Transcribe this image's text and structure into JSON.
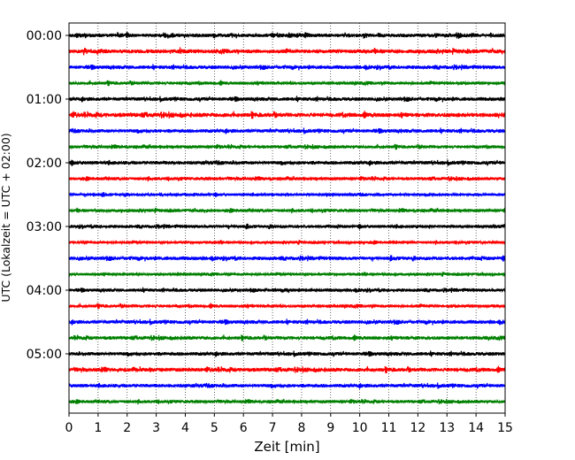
{
  "chart_data": {
    "type": "line",
    "title": "",
    "xlabel": "Zeit  [min]",
    "ylabel": "UTC (Lokalzeit = UTC + 02:00)",
    "xlim": [
      0,
      15
    ],
    "x_ticks": [
      0,
      1,
      2,
      3,
      4,
      5,
      6,
      7,
      8,
      9,
      10,
      11,
      12,
      13,
      14,
      15
    ],
    "y_tick_labels": [
      "00:00",
      "01:00",
      "02:00",
      "03:00",
      "04:00",
      "05:00"
    ],
    "grid": "vertical dotted lines at each minute",
    "trace_interval_min": 15,
    "trace_colors": [
      "#000000",
      "#ff0000",
      "#0000ff",
      "#008000"
    ],
    "series": [
      {
        "start": "00:00",
        "color": "#000000",
        "amplitude": 0.9
      },
      {
        "start": "00:15",
        "color": "#ff0000",
        "amplitude": 1.0
      },
      {
        "start": "00:30",
        "color": "#0000ff",
        "amplitude": 0.9
      },
      {
        "start": "00:45",
        "color": "#008000",
        "amplitude": 0.8
      },
      {
        "start": "01:00",
        "color": "#000000",
        "amplitude": 0.9
      },
      {
        "start": "01:15",
        "color": "#ff0000",
        "amplitude": 1.1
      },
      {
        "start": "01:30",
        "color": "#0000ff",
        "amplitude": 0.9
      },
      {
        "start": "01:45",
        "color": "#008000",
        "amplitude": 0.8
      },
      {
        "start": "02:00",
        "color": "#000000",
        "amplitude": 0.9
      },
      {
        "start": "02:15",
        "color": "#ff0000",
        "amplitude": 0.8
      },
      {
        "start": "02:30",
        "color": "#0000ff",
        "amplitude": 0.7
      },
      {
        "start": "02:45",
        "color": "#008000",
        "amplitude": 0.8
      },
      {
        "start": "03:00",
        "color": "#000000",
        "amplitude": 0.8
      },
      {
        "start": "03:15",
        "color": "#ff0000",
        "amplitude": 0.7
      },
      {
        "start": "03:30",
        "color": "#0000ff",
        "amplitude": 0.9
      },
      {
        "start": "03:45",
        "color": "#008000",
        "amplitude": 0.7
      },
      {
        "start": "04:00",
        "color": "#000000",
        "amplitude": 0.8
      },
      {
        "start": "04:15",
        "color": "#ff0000",
        "amplitude": 0.8
      },
      {
        "start": "04:30",
        "color": "#0000ff",
        "amplitude": 0.9
      },
      {
        "start": "04:45",
        "color": "#008000",
        "amplitude": 0.9
      },
      {
        "start": "05:00",
        "color": "#000000",
        "amplitude": 0.9
      },
      {
        "start": "05:15",
        "color": "#ff0000",
        "amplitude": 1.0
      },
      {
        "start": "05:30",
        "color": "#0000ff",
        "amplitude": 0.9
      },
      {
        "start": "05:45",
        "color": "#008000",
        "amplitude": 0.8
      }
    ]
  }
}
